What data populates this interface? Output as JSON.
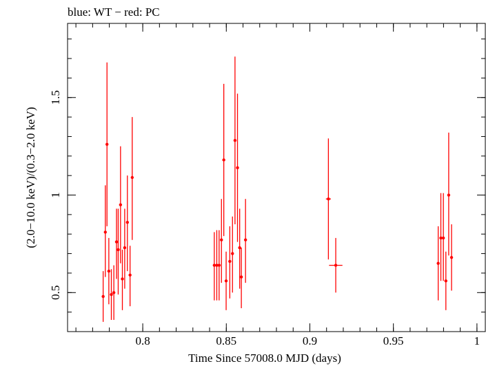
{
  "chart_data": {
    "type": "scatter",
    "title": "blue: WT − red: PC",
    "xlabel": "Time Since 57008.0 MJD (days)",
    "ylabel": "(2.0−10.0 keV)/(0.3−2.0 keV)",
    "xlim": [
      0.755,
      1.005
    ],
    "ylim": [
      0.3,
      1.88
    ],
    "x_ticks": [
      {
        "value": 0.8,
        "label": "0.8"
      },
      {
        "value": 0.85,
        "label": "0.85"
      },
      {
        "value": 0.9,
        "label": "0.9"
      },
      {
        "value": 0.95,
        "label": "0.95"
      },
      {
        "value": 1.0,
        "label": "1"
      }
    ],
    "y_ticks": [
      {
        "value": 0.5,
        "label": "0.5"
      },
      {
        "value": 1.0,
        "label": "1"
      },
      {
        "value": 1.5,
        "label": "1.5"
      }
    ],
    "x_minor_step": 0.01,
    "y_minor_step": 0.1,
    "grid": false,
    "series": [
      {
        "name": "PC",
        "color": "#ff0000",
        "points": [
          {
            "x": 0.7763,
            "y": 0.48,
            "ylo": 0.35,
            "yhi": 0.61,
            "xerr": 0.0005
          },
          {
            "x": 0.7776,
            "y": 0.81,
            "ylo": 0.58,
            "yhi": 1.05,
            "xerr": 0.0005
          },
          {
            "x": 0.7786,
            "y": 1.26,
            "ylo": 0.84,
            "yhi": 1.68,
            "xerr": 0.0005
          },
          {
            "x": 0.7797,
            "y": 0.61,
            "ylo": 0.44,
            "yhi": 0.78,
            "xerr": 0.0005
          },
          {
            "x": 0.7812,
            "y": 0.49,
            "ylo": 0.36,
            "yhi": 0.62,
            "xerr": 0.0005
          },
          {
            "x": 0.7827,
            "y": 0.5,
            "ylo": 0.36,
            "yhi": 0.64,
            "xerr": 0.0005
          },
          {
            "x": 0.7843,
            "y": 0.76,
            "ylo": 0.57,
            "yhi": 0.93,
            "xerr": 0.0005
          },
          {
            "x": 0.7853,
            "y": 0.72,
            "ylo": 0.49,
            "yhi": 0.93,
            "xerr": 0.0005
          },
          {
            "x": 0.7867,
            "y": 0.95,
            "ylo": 0.65,
            "yhi": 1.25,
            "xerr": 0.0005
          },
          {
            "x": 0.7878,
            "y": 0.57,
            "ylo": 0.41,
            "yhi": 0.72,
            "xerr": 0.0005
          },
          {
            "x": 0.7892,
            "y": 0.73,
            "ylo": 0.52,
            "yhi": 0.93,
            "xerr": 0.0005
          },
          {
            "x": 0.7908,
            "y": 0.86,
            "ylo": 0.61,
            "yhi": 1.1,
            "xerr": 0.0005
          },
          {
            "x": 0.7924,
            "y": 0.59,
            "ylo": 0.43,
            "yhi": 0.74,
            "xerr": 0.0005
          },
          {
            "x": 0.7937,
            "y": 1.09,
            "ylo": 0.77,
            "yhi": 1.4,
            "xerr": 0.0005
          },
          {
            "x": 0.8428,
            "y": 0.64,
            "ylo": 0.46,
            "yhi": 0.81,
            "xerr": 0.0005
          },
          {
            "x": 0.8443,
            "y": 0.64,
            "ylo": 0.46,
            "yhi": 0.82,
            "xerr": 0.0005
          },
          {
            "x": 0.8457,
            "y": 0.64,
            "ylo": 0.46,
            "yhi": 0.82,
            "xerr": 0.0005
          },
          {
            "x": 0.8471,
            "y": 0.77,
            "ylo": 0.55,
            "yhi": 0.98,
            "xerr": 0.0005
          },
          {
            "x": 0.8485,
            "y": 1.18,
            "ylo": 0.79,
            "yhi": 1.57,
            "xerr": 0.0005
          },
          {
            "x": 0.8499,
            "y": 0.56,
            "ylo": 0.41,
            "yhi": 0.71,
            "xerr": 0.0005
          },
          {
            "x": 0.8521,
            "y": 0.66,
            "ylo": 0.47,
            "yhi": 0.84,
            "xerr": 0.0005
          },
          {
            "x": 0.8537,
            "y": 0.7,
            "ylo": 0.5,
            "yhi": 0.89,
            "xerr": 0.0005
          },
          {
            "x": 0.8552,
            "y": 1.28,
            "ylo": 0.85,
            "yhi": 1.71,
            "xerr": 0.0005
          },
          {
            "x": 0.8567,
            "y": 1.14,
            "ylo": 0.76,
            "yhi": 1.52,
            "xerr": 0.0005
          },
          {
            "x": 0.858,
            "y": 0.73,
            "ylo": 0.52,
            "yhi": 0.93,
            "xerr": 0.0005
          },
          {
            "x": 0.859,
            "y": 0.58,
            "ylo": 0.42,
            "yhi": 0.73,
            "xerr": 0.0005
          },
          {
            "x": 0.8615,
            "y": 0.77,
            "ylo": 0.55,
            "yhi": 0.98,
            "xerr": 0.0005
          },
          {
            "x": 0.9111,
            "y": 0.98,
            "ylo": 0.67,
            "yhi": 1.29,
            "xerr": 0.0015
          },
          {
            "x": 0.9155,
            "y": 0.64,
            "ylo": 0.5,
            "yhi": 0.78,
            "xerr": 0.004
          },
          {
            "x": 0.9768,
            "y": 0.65,
            "ylo": 0.46,
            "yhi": 0.84,
            "xerr": 0.0005
          },
          {
            "x": 0.9784,
            "y": 0.78,
            "ylo": 0.56,
            "yhi": 1.01,
            "xerr": 0.0005
          },
          {
            "x": 0.9799,
            "y": 0.78,
            "ylo": 0.56,
            "yhi": 1.01,
            "xerr": 0.0005
          },
          {
            "x": 0.9814,
            "y": 0.56,
            "ylo": 0.41,
            "yhi": 0.71,
            "xerr": 0.0005
          },
          {
            "x": 0.9831,
            "y": 1.0,
            "ylo": 0.69,
            "yhi": 1.32,
            "xerr": 0.0005
          },
          {
            "x": 0.9848,
            "y": 0.68,
            "ylo": 0.51,
            "yhi": 0.85,
            "xerr": 0.0005
          }
        ]
      }
    ]
  }
}
